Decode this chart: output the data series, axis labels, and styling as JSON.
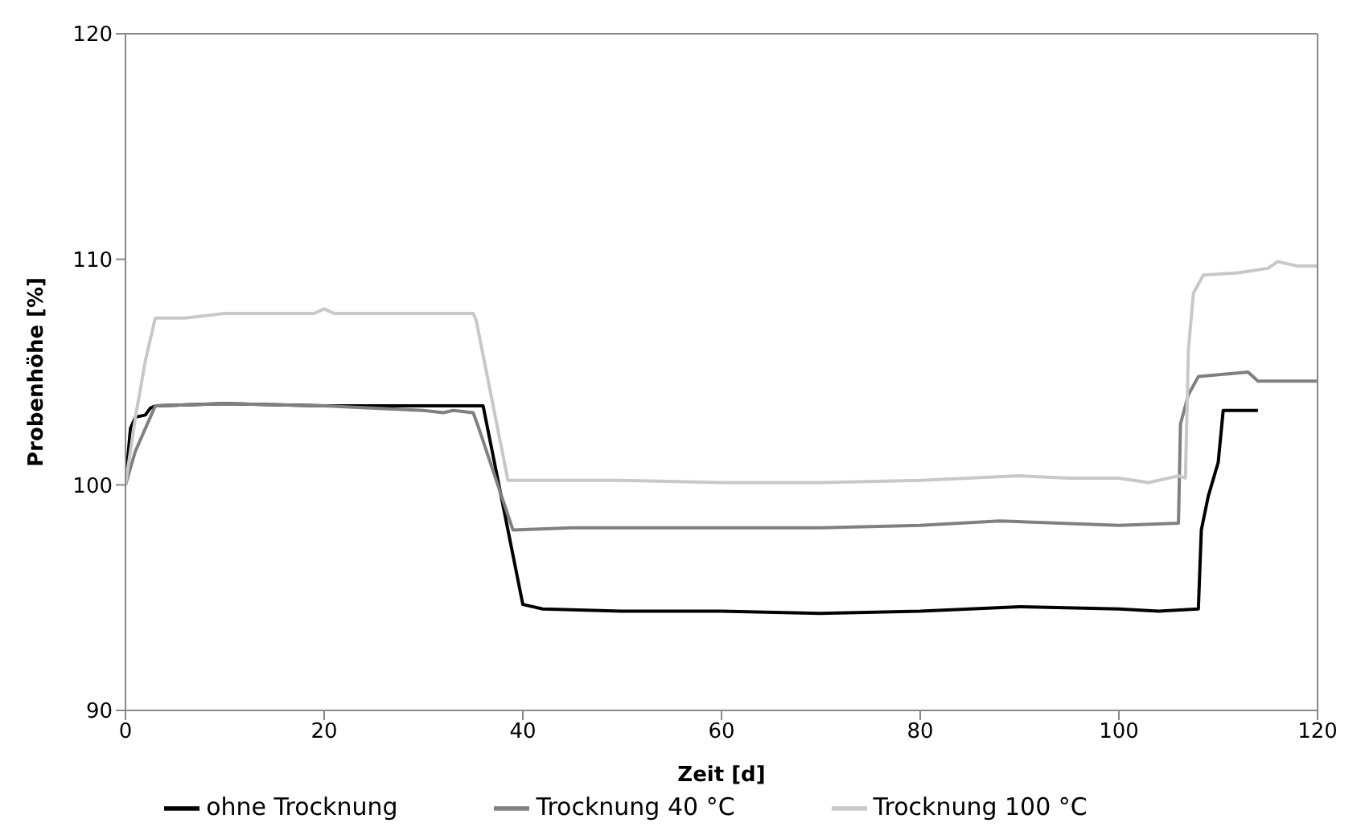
{
  "chart_data": {
    "type": "line",
    "xlabel": "Zeit [d]",
    "ylabel": "Probenhöhe [%]",
    "xlim": [
      0,
      120
    ],
    "xticks": [
      0,
      20,
      40,
      60,
      80,
      100,
      120
    ],
    "ylim": [
      90,
      120
    ],
    "yticks": [
      90,
      100,
      110,
      120
    ],
    "grid": false,
    "legend": "bottom",
    "marker": "none",
    "line_style": "solid",
    "series": [
      {
        "name": "ohne Trocknung",
        "color": "#000000",
        "x": [
          0,
          0.5,
          1,
          2,
          2.5,
          3,
          10,
          20,
          30,
          36,
          40,
          42,
          50,
          60,
          70,
          80,
          90,
          100,
          104,
          108,
          108.3,
          109,
          110,
          110.5,
          114
        ],
        "values": [
          100,
          102.5,
          103,
          103.1,
          103.4,
          103.5,
          103.6,
          103.5,
          103.5,
          103.5,
          94.7,
          94.5,
          94.4,
          94.4,
          94.3,
          94.4,
          94.6,
          94.5,
          94.4,
          94.5,
          98,
          99.5,
          101,
          103.3,
          103.3
        ]
      },
      {
        "name": "Trocknung 40 °C",
        "color": "#808080",
        "x": [
          0,
          1,
          3,
          10,
          20,
          30,
          32,
          33,
          35,
          35.5,
          39,
          45,
          60,
          70,
          80,
          88,
          100,
          106,
          106.2,
          107,
          108,
          113,
          114,
          120
        ],
        "values": [
          100,
          101.5,
          103.5,
          103.6,
          103.5,
          103.3,
          103.2,
          103.3,
          103.2,
          102.6,
          98,
          98.1,
          98.1,
          98.1,
          98.2,
          98.4,
          98.2,
          98.3,
          102.7,
          104,
          104.8,
          105,
          104.6,
          104.6
        ]
      },
      {
        "name": "Trocknung 100 °C",
        "color": "#c8c8c8",
        "x": [
          0,
          1,
          2,
          3,
          6,
          10,
          19,
          20,
          21,
          35,
          35.3,
          38.5,
          50,
          60,
          70,
          80,
          90,
          95,
          100,
          103,
          106,
          106.7,
          107,
          107.5,
          108.5,
          112,
          115,
          116,
          118,
          120
        ],
        "values": [
          100,
          103,
          105.5,
          107.4,
          107.4,
          107.6,
          107.6,
          107.8,
          107.6,
          107.6,
          107.3,
          100.2,
          100.2,
          100.1,
          100.1,
          100.2,
          100.4,
          100.3,
          100.3,
          100.1,
          100.4,
          100.3,
          106,
          108.5,
          109.3,
          109.4,
          109.6,
          109.9,
          109.7,
          109.7
        ]
      }
    ]
  }
}
